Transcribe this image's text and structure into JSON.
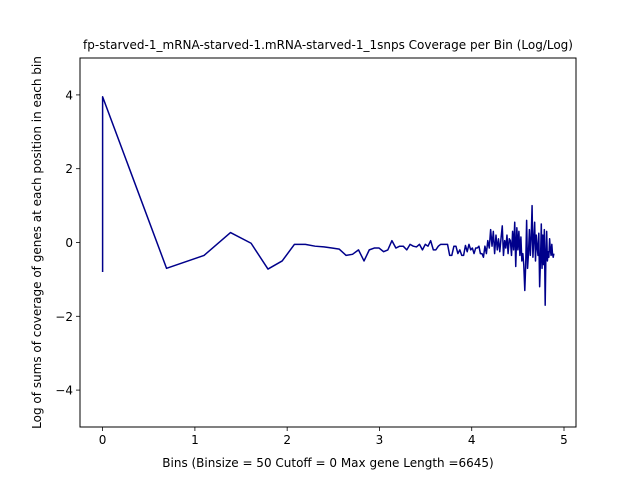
{
  "chart_data": {
    "type": "line",
    "title": "fp-starved-1_mRNA-starved-1.mRNA-starved-1_1snps Coverage per Bin (Log/Log)",
    "xlabel": "Bins  (Binsize = 50 Cutoff = 0 Max gene Length =6645)",
    "ylabel": "Log of sums of coverage of genes at each position in each bin",
    "xlim": [
      -0.245,
      5.13
    ],
    "ylim": [
      -5,
      5
    ],
    "x_ticks": [
      0,
      1,
      2,
      3,
      4,
      5
    ],
    "y_ticks": [
      -4,
      -2,
      0,
      2,
      4
    ],
    "x_tick_labels": [
      "0",
      "1",
      "2",
      "3",
      "4",
      "5"
    ],
    "y_tick_labels": [
      "−4",
      "−2",
      "0",
      "2",
      "4"
    ],
    "grid": false,
    "series": [
      {
        "color": "#00008b",
        "x": [
          0.0,
          0.0,
          0.693,
          1.099,
          1.386,
          1.609,
          1.792,
          1.946,
          2.079,
          2.197,
          2.303,
          2.398,
          2.485,
          2.565,
          2.639,
          2.708,
          2.773,
          2.833,
          2.89,
          2.944,
          2.996,
          3.045,
          3.091,
          3.135,
          3.178,
          3.219,
          3.258,
          3.296,
          3.332,
          3.367,
          3.401,
          3.434,
          3.466,
          3.497,
          3.526,
          3.555,
          3.584,
          3.611,
          3.638,
          3.664,
          3.689,
          3.714,
          3.738,
          3.761,
          3.784,
          3.807,
          3.829,
          3.85,
          3.871,
          3.892,
          3.912,
          3.932,
          3.951,
          3.97,
          3.989,
          4.007,
          4.025,
          4.043,
          4.06,
          4.078,
          4.094,
          4.111,
          4.127,
          4.143,
          4.159,
          4.174,
          4.19,
          4.205,
          4.22,
          4.234,
          4.248,
          4.263,
          4.277,
          4.29,
          4.304,
          4.317,
          4.331,
          4.344,
          4.357,
          4.369,
          4.382,
          4.394,
          4.407,
          4.419,
          4.431,
          4.443,
          4.454,
          4.466,
          4.477,
          4.489,
          4.5,
          4.511,
          4.522,
          4.533,
          4.543,
          4.554,
          4.564,
          4.575,
          4.585,
          4.595,
          4.605,
          4.615,
          4.625,
          4.635,
          4.644,
          4.654,
          4.663,
          4.673,
          4.682,
          4.691,
          4.7,
          4.71,
          4.718,
          4.727,
          4.736,
          4.745,
          4.754,
          4.762,
          4.771,
          4.779,
          4.787,
          4.796,
          4.804,
          4.812,
          4.82,
          4.828,
          4.836,
          4.844,
          4.852,
          4.86,
          4.868,
          4.875,
          4.883,
          4.89
        ],
        "y": [
          -0.8,
          3.95,
          -0.7,
          -0.35,
          0.27,
          -0.02,
          -0.72,
          -0.5,
          -0.05,
          -0.05,
          -0.1,
          -0.12,
          -0.15,
          -0.18,
          -0.35,
          -0.32,
          -0.2,
          -0.5,
          -0.2,
          -0.15,
          -0.15,
          -0.25,
          -0.2,
          0.05,
          -0.15,
          -0.1,
          -0.1,
          -0.2,
          -0.05,
          -0.1,
          -0.12,
          -0.05,
          -0.2,
          -0.05,
          -0.1,
          0.05,
          -0.2,
          -0.2,
          -0.1,
          -0.05,
          -0.05,
          -0.05,
          -0.05,
          -0.35,
          -0.35,
          -0.1,
          -0.1,
          -0.3,
          -0.2,
          -0.35,
          -0.35,
          -0.08,
          -0.25,
          -0.05,
          -0.2,
          -0.15,
          -0.3,
          -0.15,
          -0.15,
          -0.1,
          -0.3,
          -0.3,
          -0.4,
          -0.1,
          -0.3,
          0.05,
          -0.15,
          0.35,
          -0.1,
          0.3,
          -0.3,
          0.2,
          -0.2,
          0.1,
          -0.25,
          0.1,
          0.45,
          -0.35,
          0.05,
          -0.15,
          0.2,
          -0.3,
          0.1,
          0.05,
          -0.35,
          0.3,
          -0.2,
          0.55,
          -0.65,
          0.4,
          -0.2,
          0.3,
          -0.35,
          0.15,
          -0.5,
          -0.3,
          -0.6,
          -1.3,
          -0.6,
          0.6,
          -0.7,
          -0.3,
          0.35,
          -0.35,
          0.1,
          1.0,
          -0.4,
          0.1,
          0.55,
          -0.5,
          0.2,
          -0.15,
          -0.35,
          0.25,
          -1.2,
          -0.5,
          0.5,
          -0.7,
          0.2,
          -0.6,
          0.35,
          -1.7,
          -0.3,
          0.3,
          -0.5,
          -0.25,
          -0.4,
          0.1,
          -0.2,
          -0.35,
          -0.05,
          -0.3,
          -0.4,
          -0.3
        ]
      }
    ]
  }
}
